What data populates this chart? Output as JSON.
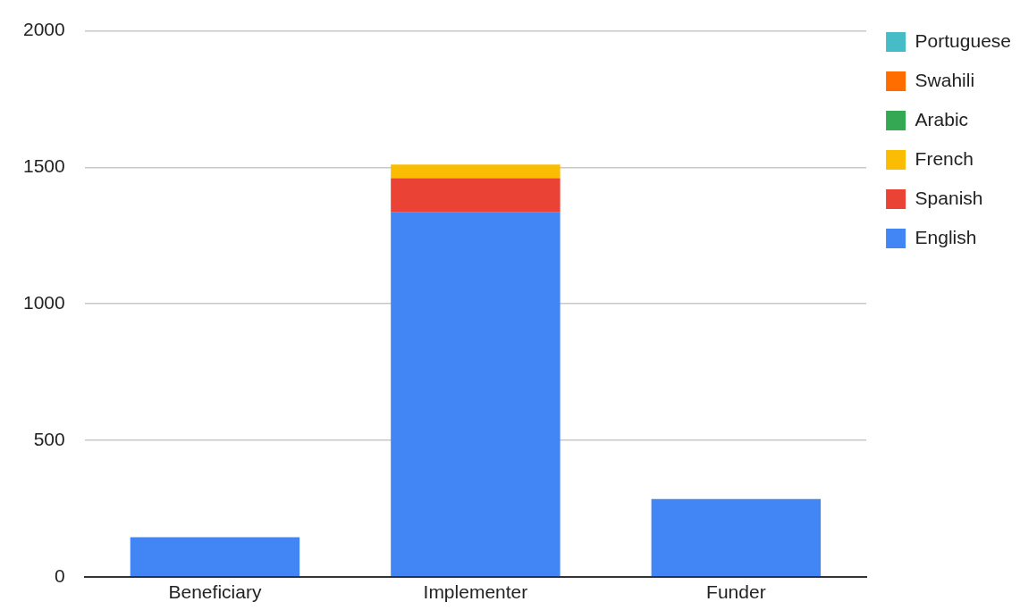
{
  "chart_data": {
    "type": "bar",
    "stacked": true,
    "categories": [
      "Beneficiary",
      "Implementer",
      "Funder"
    ],
    "series": [
      {
        "name": "English",
        "color": "#4285f4",
        "values": [
          145,
          1335,
          285
        ]
      },
      {
        "name": "Spanish",
        "color": "#ea4335",
        "values": [
          0,
          125,
          0
        ]
      },
      {
        "name": "French",
        "color": "#fbbc04",
        "values": [
          0,
          50,
          0
        ]
      },
      {
        "name": "Arabic",
        "color": "#34a853",
        "values": [
          0,
          0,
          0
        ]
      },
      {
        "name": "Swahili",
        "color": "#ff6d01",
        "values": [
          0,
          0,
          0
        ]
      },
      {
        "name": "Portuguese",
        "color": "#46bdc6",
        "values": [
          0,
          0,
          0
        ]
      }
    ],
    "ylim": [
      0,
      2000
    ],
    "yticks": [
      0,
      500,
      1000,
      1500,
      2000
    ],
    "grid": "y",
    "legend": "top right"
  }
}
